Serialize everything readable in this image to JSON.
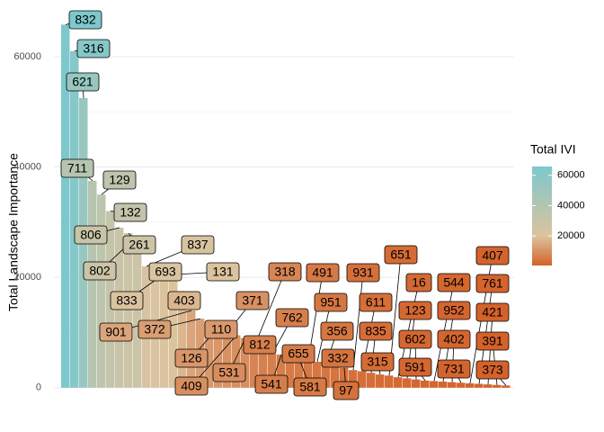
{
  "chart_data": {
    "type": "bar",
    "y_label": "Total Landscape Importance",
    "categories": [
      "832",
      "316",
      "621",
      "711",
      "129",
      "132",
      "806",
      "261",
      "802",
      "837",
      "693",
      "833",
      "131",
      "403",
      "901",
      "372",
      "110",
      "126",
      "371",
      "409",
      "531",
      "318",
      "812",
      "762",
      "541",
      "655",
      "581",
      "491",
      "951",
      "356",
      "332",
      "97",
      "931",
      "611",
      "835",
      "315",
      "651",
      "16",
      "123",
      "602",
      "591",
      "544",
      "952",
      "402",
      "731",
      "407",
      "761",
      "421",
      "391",
      "373"
    ],
    "values": [
      65800,
      61000,
      52500,
      37500,
      35000,
      32000,
      29000,
      28000,
      27500,
      22000,
      21500,
      20700,
      20500,
      17500,
      14000,
      12500,
      11500,
      11000,
      10000,
      9500,
      9000,
      7500,
      6500,
      6200,
      6000,
      5500,
      5200,
      5000,
      4700,
      4400,
      4000,
      3600,
      3200,
      3000,
      2700,
      2400,
      2200,
      1900,
      1700,
      1500,
      1300,
      1200,
      1100,
      1000,
      900,
      800,
      700,
      600,
      500,
      400
    ],
    "ylim": [
      -1500,
      67000
    ],
    "yticks": [
      0,
      20000,
      40000,
      60000
    ],
    "grid": true,
    "legend": {
      "title": "Total IVI",
      "ticks": [
        20000,
        40000,
        60000
      ],
      "colors": [
        "#d4622a",
        "#dcc39e",
        "#7cc8cd"
      ]
    }
  }
}
